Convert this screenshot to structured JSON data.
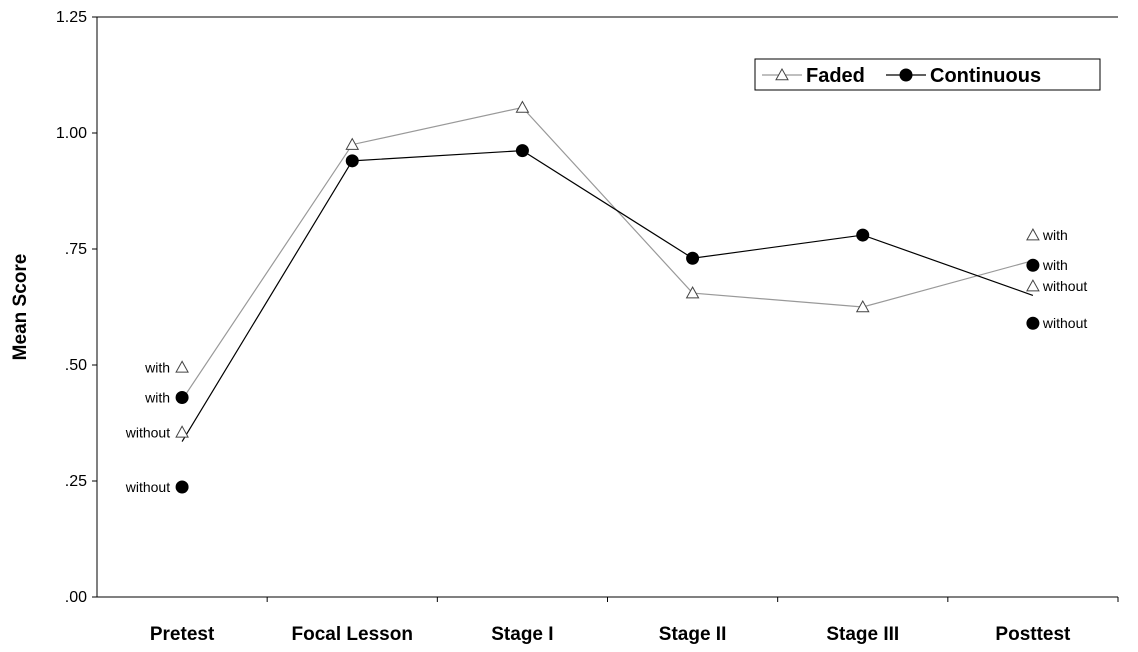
{
  "chart_data": {
    "type": "line",
    "title": "",
    "xlabel": "",
    "ylabel": "Mean Score",
    "ylim": [
      0,
      1.25
    ],
    "yticks": [
      0,
      0.25,
      0.5,
      0.75,
      1.0,
      1.25
    ],
    "ytick_labels": [
      ".00",
      ".25",
      ".50",
      ".75",
      "1.00",
      "1.25"
    ],
    "categories": [
      "Pretest",
      "Focal Lesson",
      "Stage I",
      "Stage II",
      "Stage III",
      "Posttest"
    ],
    "legend": {
      "position": "top-right",
      "entries": [
        "Faded",
        "Continuous"
      ]
    },
    "series": [
      {
        "name": "Faded",
        "color": "#999999",
        "marker": "triangle-open",
        "values": [
          0.425,
          0.975,
          1.055,
          0.655,
          0.625,
          0.725
        ]
      },
      {
        "name": "Continuous",
        "color": "#000000",
        "marker": "circle-filled",
        "values": [
          0.335,
          0.94,
          0.962,
          0.73,
          0.78,
          0.65
        ]
      }
    ],
    "annotations": [
      {
        "series": "Faded",
        "category": "Pretest",
        "value": 0.495,
        "label": "with",
        "side": "left"
      },
      {
        "series": "Faded",
        "category": "Pretest",
        "value": 0.355,
        "label": "without",
        "side": "left"
      },
      {
        "series": "Continuous",
        "category": "Pretest",
        "value": 0.43,
        "label": "with",
        "side": "left"
      },
      {
        "series": "Continuous",
        "category": "Pretest",
        "value": 0.237,
        "label": "without",
        "side": "left"
      },
      {
        "series": "Faded",
        "category": "Posttest",
        "value": 0.78,
        "label": "with",
        "side": "right"
      },
      {
        "series": "Faded",
        "category": "Posttest",
        "value": 0.67,
        "label": "without",
        "side": "right"
      },
      {
        "series": "Continuous",
        "category": "Posttest",
        "value": 0.715,
        "label": "with",
        "side": "right"
      },
      {
        "series": "Continuous",
        "category": "Posttest",
        "value": 0.59,
        "label": "without",
        "side": "right"
      }
    ]
  }
}
